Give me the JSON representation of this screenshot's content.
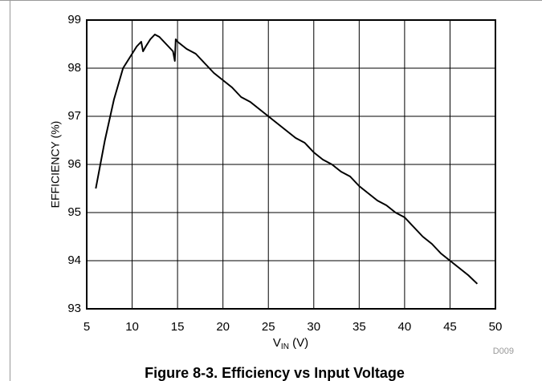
{
  "chart_data": {
    "type": "line",
    "caption": "Figure 8-3. Efficiency vs Input Voltage",
    "ylabel": "EFFICIENCY (%)",
    "xlabel": {
      "main": "V",
      "sub": "IN",
      "suffix": " (V)"
    },
    "figure_id": "D009",
    "x": [
      6,
      7,
      8,
      9,
      10,
      10.5,
      11,
      11.2,
      11.5,
      12,
      12.5,
      13,
      13.5,
      14,
      14.5,
      14.7,
      14.8,
      15,
      16,
      17,
      18,
      19,
      20,
      21,
      22,
      23,
      24,
      25,
      26,
      27,
      28,
      29,
      30,
      31,
      32,
      33,
      34,
      35,
      36,
      37,
      38,
      39,
      40,
      41,
      42,
      43,
      44,
      45,
      46,
      47,
      48
    ],
    "series": [
      {
        "name": "Efficiency",
        "color": "#000000",
        "values": [
          95.5,
          96.5,
          97.35,
          98.0,
          98.3,
          98.45,
          98.55,
          98.35,
          98.45,
          98.6,
          98.7,
          98.65,
          98.55,
          98.45,
          98.35,
          98.15,
          98.6,
          98.55,
          98.4,
          98.3,
          98.1,
          97.9,
          97.75,
          97.6,
          97.4,
          97.3,
          97.15,
          97.0,
          96.85,
          96.7,
          96.55,
          96.45,
          96.25,
          96.1,
          96.0,
          95.85,
          95.75,
          95.55,
          95.4,
          95.25,
          95.15,
          95.0,
          94.9,
          94.7,
          94.5,
          94.35,
          94.15,
          94.0,
          93.85,
          93.7,
          93.52
        ]
      }
    ],
    "xlim": [
      5,
      50
    ],
    "xticks": [
      5,
      10,
      15,
      20,
      25,
      30,
      35,
      40,
      45,
      50
    ],
    "ylim": [
      93,
      99
    ],
    "yticks": [
      93,
      94,
      95,
      96,
      97,
      98,
      99
    ],
    "grid": true
  }
}
